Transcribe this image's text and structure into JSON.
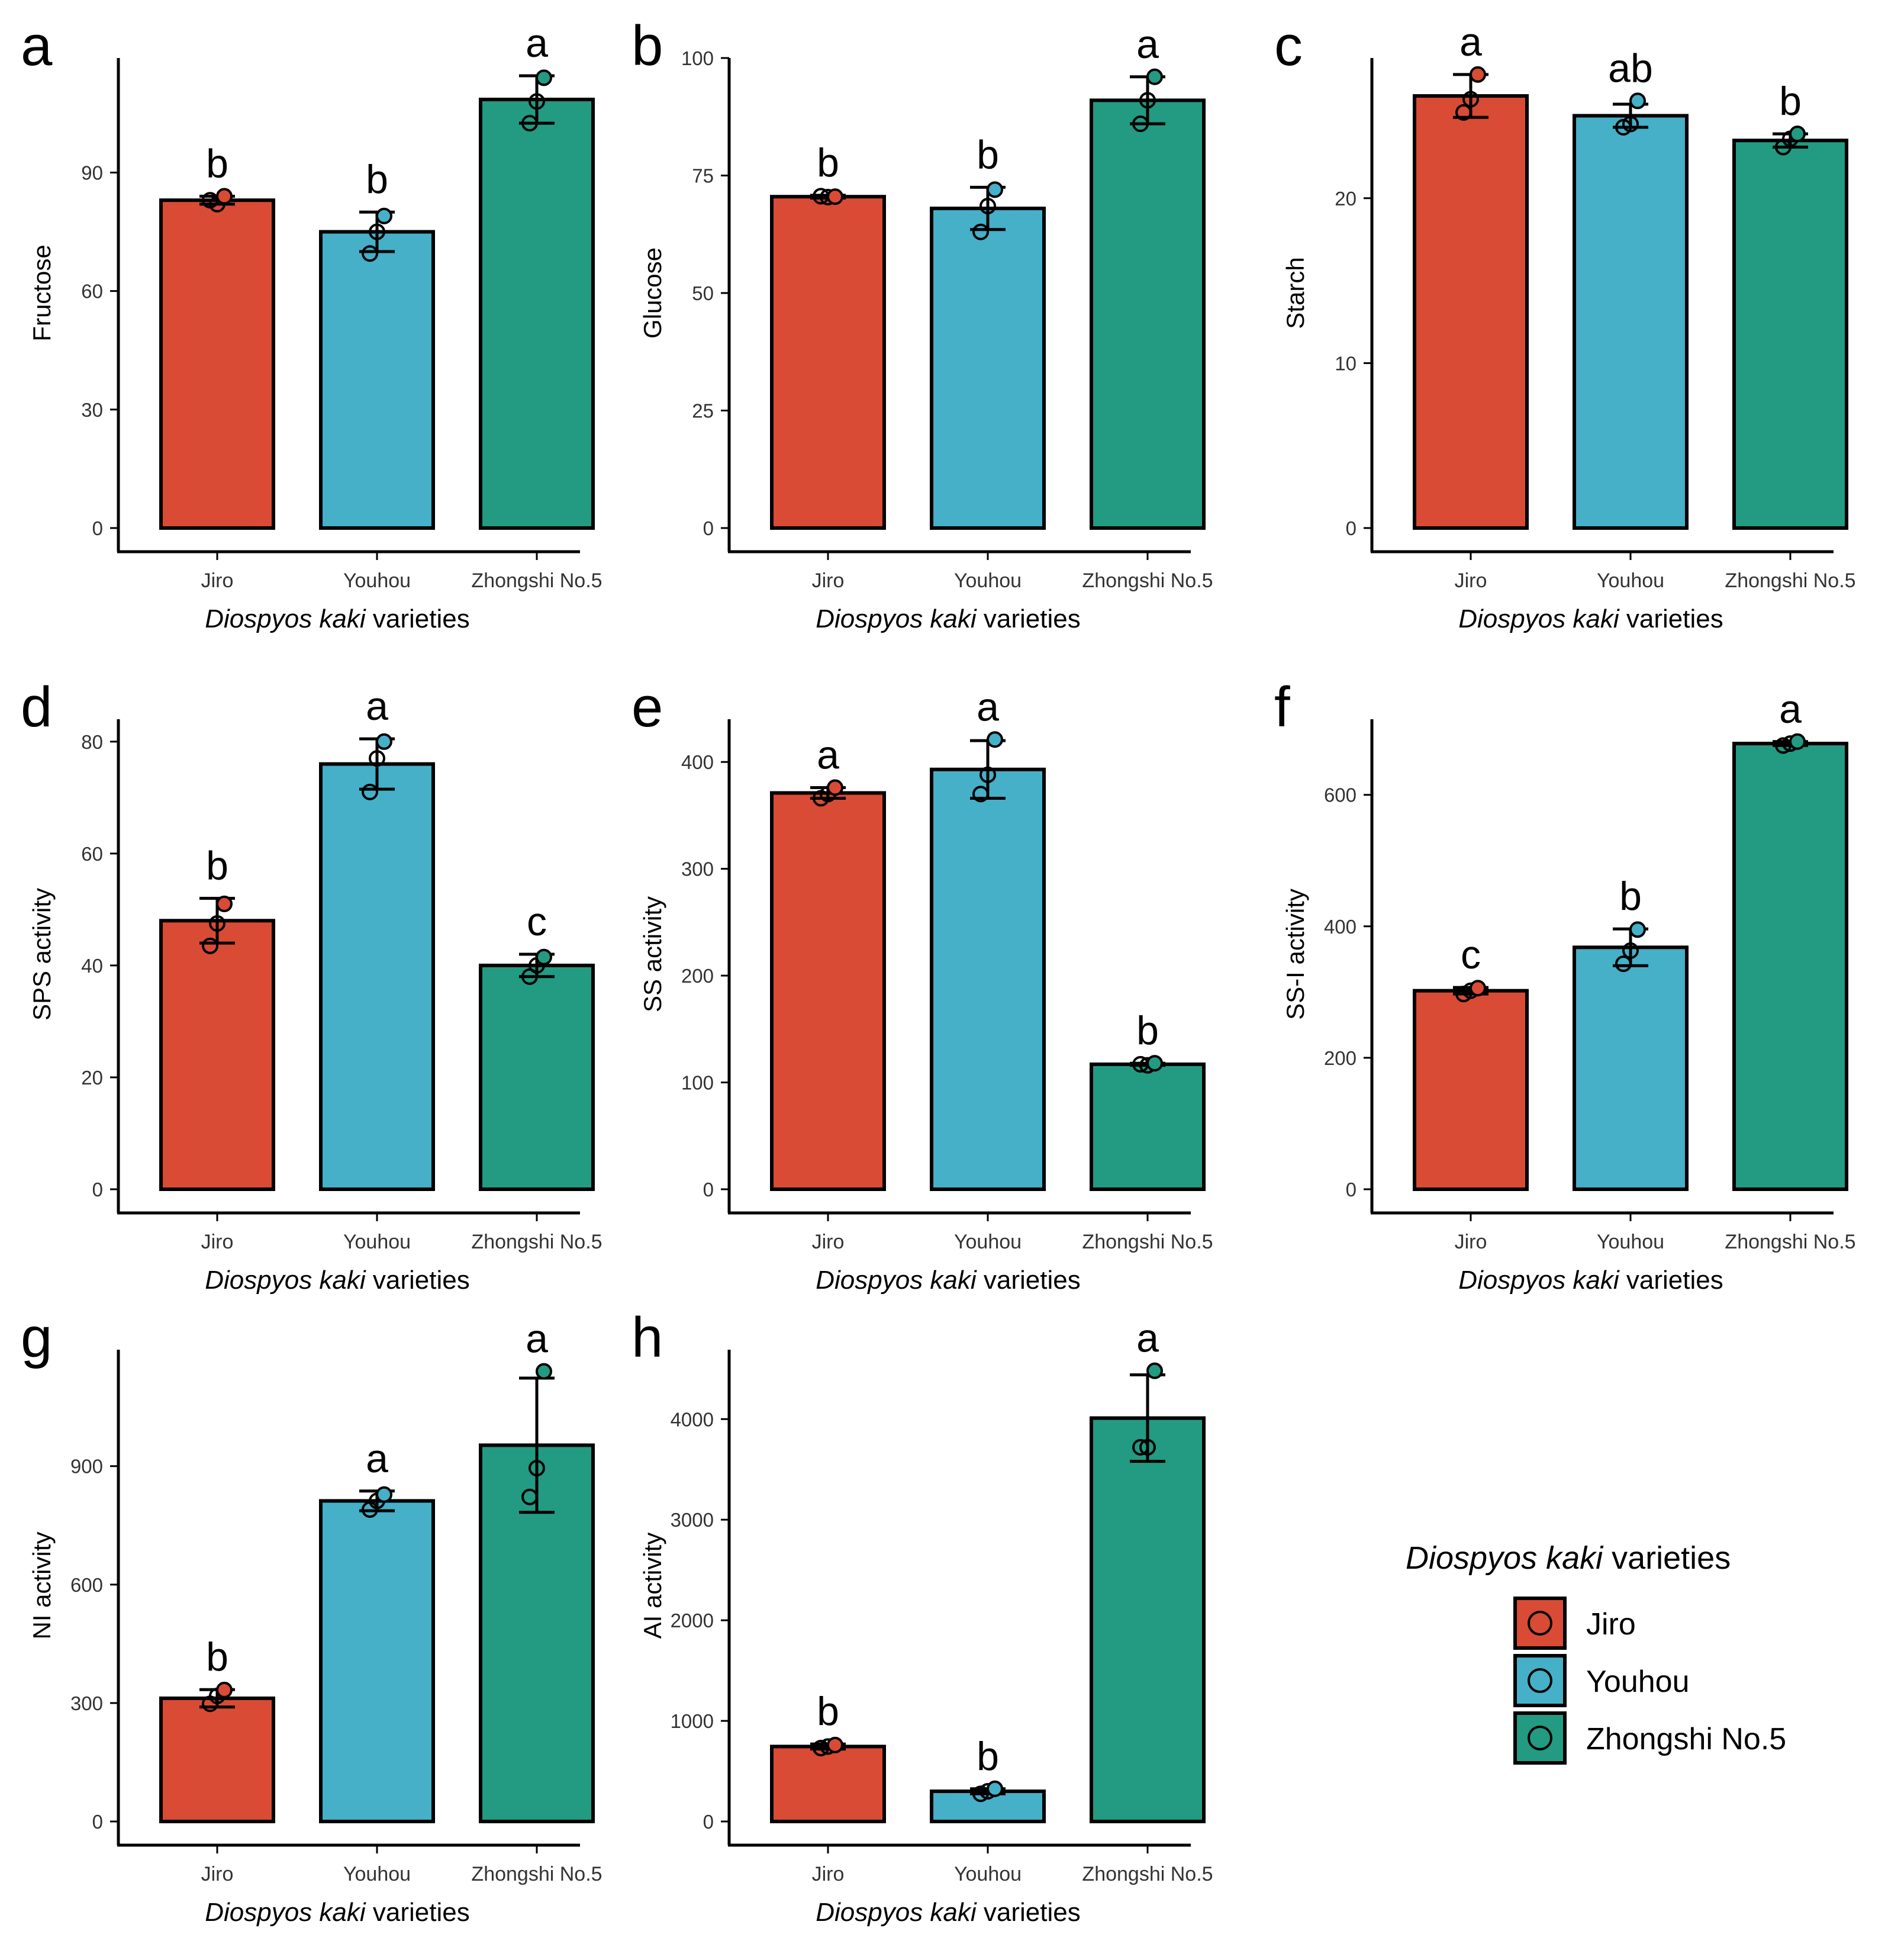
{
  "figure": {
    "legend": {
      "title_italic": "Diospyos kaki",
      "title_rest": " varieties",
      "items": [
        {
          "label": "Jiro",
          "color": "#D94B35"
        },
        {
          "label": "Youhou",
          "color": "#45B0C8"
        },
        {
          "label": "Zhongshi No.5",
          "color": "#229B82"
        }
      ]
    }
  },
  "chart_data": [
    {
      "panel": "a",
      "type": "bar",
      "ylabel": "Fructose",
      "xlabel_italic": "Diospyos kaki",
      "xlabel_rest": " varieties",
      "categories": [
        "Jiro",
        "Youhou",
        "Zhongshi No.5"
      ],
      "values": [
        83,
        75,
        108.5
      ],
      "errors": [
        1,
        5,
        6
      ],
      "points": [
        [
          83,
          82,
          84
        ],
        [
          69.5,
          75,
          79
        ],
        [
          102.5,
          108,
          114
        ]
      ],
      "letters": [
        "b",
        "b",
        "a"
      ],
      "ylim": [
        0,
        119
      ],
      "yticks": [
        0,
        30,
        60,
        90
      ],
      "ytick_labels": [
        "0",
        "30",
        "60",
        "90"
      ]
    },
    {
      "panel": "b",
      "type": "bar",
      "ylabel": "Glucose",
      "xlabel_italic": "Diospyos kaki",
      "xlabel_rest": " varieties",
      "categories": [
        "Jiro",
        "Youhou",
        "Zhongshi No.5"
      ],
      "values": [
        70.5,
        68,
        91
      ],
      "errors": [
        0.3,
        4.5,
        5
      ],
      "points": [
        [
          70.6,
          70.4,
          70.5
        ],
        [
          63,
          68.5,
          72
        ],
        [
          86,
          91,
          96
        ]
      ],
      "letters": [
        "b",
        "b",
        "a"
      ],
      "ylim": [
        0,
        100
      ],
      "yticks": [
        0,
        25,
        50,
        75,
        100
      ],
      "ytick_labels": [
        "0",
        "25",
        "50",
        "75",
        "100"
      ]
    },
    {
      "panel": "c",
      "type": "bar",
      "ylabel": "Starch",
      "xlabel_italic": "Diospyos kaki",
      "xlabel_rest": " varieties",
      "categories": [
        "Jiro",
        "Youhou",
        "Zhongshi No.5"
      ],
      "values": [
        26.2,
        25,
        23.5
      ],
      "errors": [
        1.3,
        0.7,
        0.4
      ],
      "points": [
        [
          25.2,
          26,
          27.5
        ],
        [
          24.3,
          24.5,
          25.9
        ],
        [
          23.1,
          23.6,
          23.9
        ]
      ],
      "letters": [
        "a",
        "ab",
        "b"
      ],
      "ylim": [
        0,
        28.5
      ],
      "yticks": [
        0,
        10,
        20
      ],
      "ytick_labels": [
        "0",
        "10",
        "20"
      ]
    },
    {
      "panel": "d",
      "type": "bar",
      "ylabel": "SPS activity",
      "xlabel_italic": "Diospyos kaki",
      "xlabel_rest": " varieties",
      "categories": [
        "Jiro",
        "Youhou",
        "Zhongshi No.5"
      ],
      "values": [
        48,
        76,
        40
      ],
      "errors": [
        4,
        4.5,
        2
      ],
      "points": [
        [
          43.5,
          47.5,
          51
        ],
        [
          71,
          77,
          80
        ],
        [
          38,
          40,
          41.5
        ]
      ],
      "letters": [
        "b",
        "a",
        "c"
      ],
      "ylim": [
        0,
        84
      ],
      "yticks": [
        0,
        20,
        40,
        60,
        80
      ],
      "ytick_labels": [
        "0",
        "20",
        "40",
        "60",
        "80"
      ]
    },
    {
      "panel": "e",
      "type": "bar",
      "ylabel": "SS activity",
      "xlabel_italic": "Diospyos kaki",
      "xlabel_rest": " varieties",
      "categories": [
        "Jiro",
        "Youhou",
        "Zhongshi No.5"
      ],
      "values": [
        371,
        393,
        117
      ],
      "errors": [
        5,
        27,
        1
      ],
      "points": [
        [
          366,
          370,
          376
        ],
        [
          370,
          388,
          421
        ],
        [
          117,
          116,
          118
        ]
      ],
      "letters": [
        "a",
        "a",
        "b"
      ],
      "ylim": [
        0,
        440
      ],
      "yticks": [
        0,
        100,
        200,
        300,
        400
      ],
      "ytick_labels": [
        "0",
        "100",
        "200",
        "300",
        "400"
      ]
    },
    {
      "panel": "f",
      "type": "bar",
      "ylabel": "SS-I activity",
      "xlabel_italic": "Diospyos kaki",
      "xlabel_rest": " varieties",
      "categories": [
        "Jiro",
        "Youhou",
        "Zhongshi No.5"
      ],
      "values": [
        302,
        368,
        678
      ],
      "errors": [
        5,
        28,
        3
      ],
      "points": [
        [
          297,
          302,
          306
        ],
        [
          343,
          363,
          395
        ],
        [
          675,
          678,
          681
        ]
      ],
      "letters": [
        "c",
        "b",
        "a"
      ],
      "ylim": [
        0,
        715
      ],
      "yticks": [
        0,
        200,
        400,
        600
      ],
      "ytick_labels": [
        "0",
        "200",
        "400",
        "600"
      ]
    },
    {
      "panel": "g",
      "type": "bar",
      "ylabel": "NI activity",
      "xlabel_italic": "Diospyos kaki",
      "xlabel_rest": " varieties",
      "categories": [
        "Jiro",
        "Youhou",
        "Zhongshi No.5"
      ],
      "values": [
        312,
        812,
        953
      ],
      "errors": [
        22,
        25,
        170
      ],
      "points": [
        [
          298,
          318,
          333
        ],
        [
          790,
          812,
          828
        ],
        [
          822,
          895,
          1140
        ]
      ],
      "letters": [
        "b",
        "a",
        "a"
      ],
      "ylim": [
        0,
        1195
      ],
      "yticks": [
        0,
        300,
        600,
        900
      ],
      "ytick_labels": [
        "0",
        "300",
        "600",
        "900"
      ]
    },
    {
      "panel": "h",
      "type": "bar",
      "ylabel": "AI activity",
      "xlabel_italic": "Diospyos kaki",
      "xlabel_rest": " varieties",
      "categories": [
        "Jiro",
        "Youhou",
        "Zhongshi No.5"
      ],
      "values": [
        745,
        300,
        4010
      ],
      "errors": [
        25,
        25,
        430
      ],
      "points": [
        [
          730,
          745,
          760
        ],
        [
          275,
          300,
          325
        ],
        [
          3720,
          3720,
          4480
        ]
      ],
      "letters": [
        "b",
        "b",
        "a"
      ],
      "ylim": [
        0,
        4690
      ],
      "yticks": [
        0,
        1000,
        2000,
        3000,
        4000
      ],
      "ytick_labels": [
        "0",
        "1000",
        "2000",
        "3000",
        "4000"
      ]
    }
  ]
}
